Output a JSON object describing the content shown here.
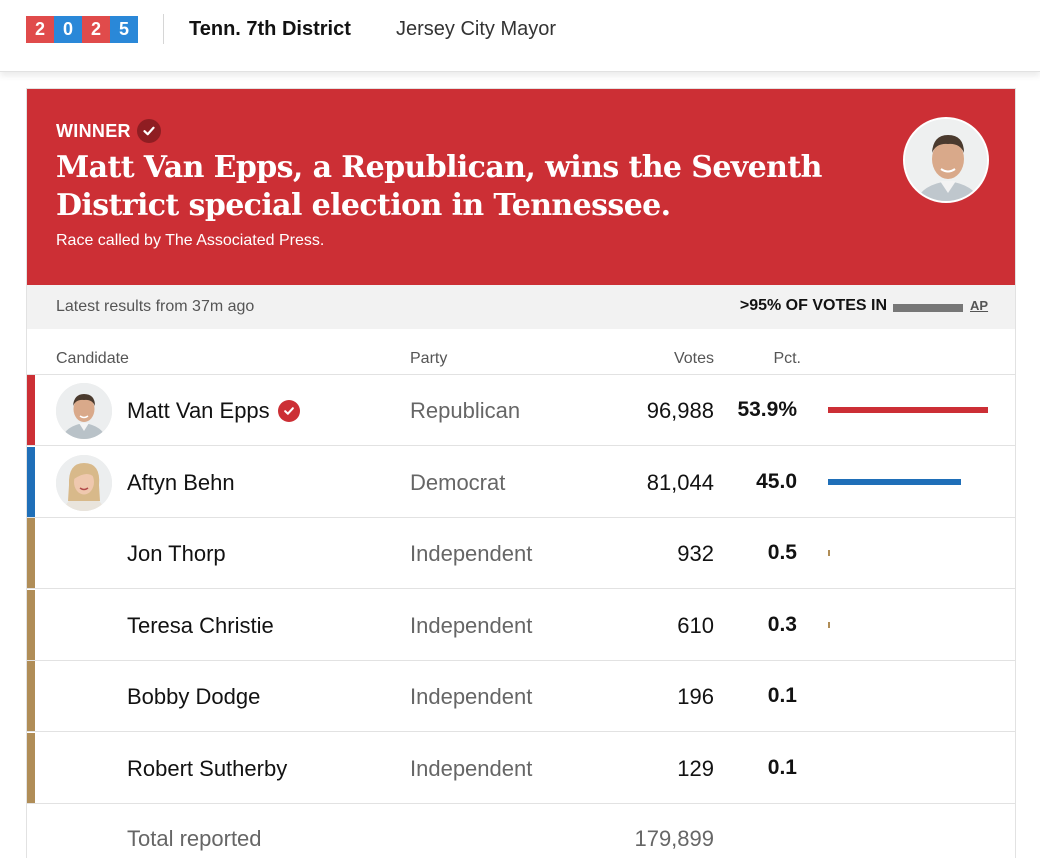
{
  "nav": {
    "year_digits": [
      "2",
      "0",
      "2",
      "5"
    ],
    "active_race": "Tenn. 7th District",
    "other_race": "Jersey City Mayor"
  },
  "banner": {
    "winner_label": "WINNER",
    "headline": "Matt Van Epps, a Republican, wins the Seventh District special election in Tennessee.",
    "called_by": "Race called by The Associated Press."
  },
  "status": {
    "latest": "Latest results from 37m ago",
    "votes_in": ">95% OF VOTES IN",
    "votes_in_fraction": 0.95,
    "source": "AP"
  },
  "table": {
    "headers": {
      "candidate": "Candidate",
      "party": "Party",
      "votes": "Votes",
      "pct": "Pct."
    },
    "rows": [
      {
        "name": "Matt Van Epps",
        "party": "Republican",
        "votes": "96,988",
        "pct": "53.9%",
        "pct_value": 53.9,
        "color": "#cc2f35",
        "winner": true,
        "photo": true
      },
      {
        "name": "Aftyn Behn",
        "party": "Democrat",
        "votes": "81,044",
        "pct": "45.0",
        "pct_value": 45.0,
        "color": "#1f6fb8",
        "winner": false,
        "photo": true
      },
      {
        "name": "Jon Thorp",
        "party": "Independent",
        "votes": "932",
        "pct": "0.5",
        "pct_value": 0.5,
        "color": "#b08d57",
        "winner": false,
        "photo": false
      },
      {
        "name": "Teresa Christie",
        "party": "Independent",
        "votes": "610",
        "pct": "0.3",
        "pct_value": 0.3,
        "color": "#b08d57",
        "winner": false,
        "photo": false
      },
      {
        "name": "Bobby Dodge",
        "party": "Independent",
        "votes": "196",
        "pct": "0.1",
        "pct_value": 0.1,
        "color": "#b08d57",
        "winner": false,
        "photo": false
      },
      {
        "name": "Robert Sutherby",
        "party": "Independent",
        "votes": "129",
        "pct": "0.1",
        "pct_value": 0.1,
        "color": "#b08d57",
        "winner": false,
        "photo": false
      }
    ],
    "total_label": "Total reported",
    "total_value": "179,899"
  }
}
